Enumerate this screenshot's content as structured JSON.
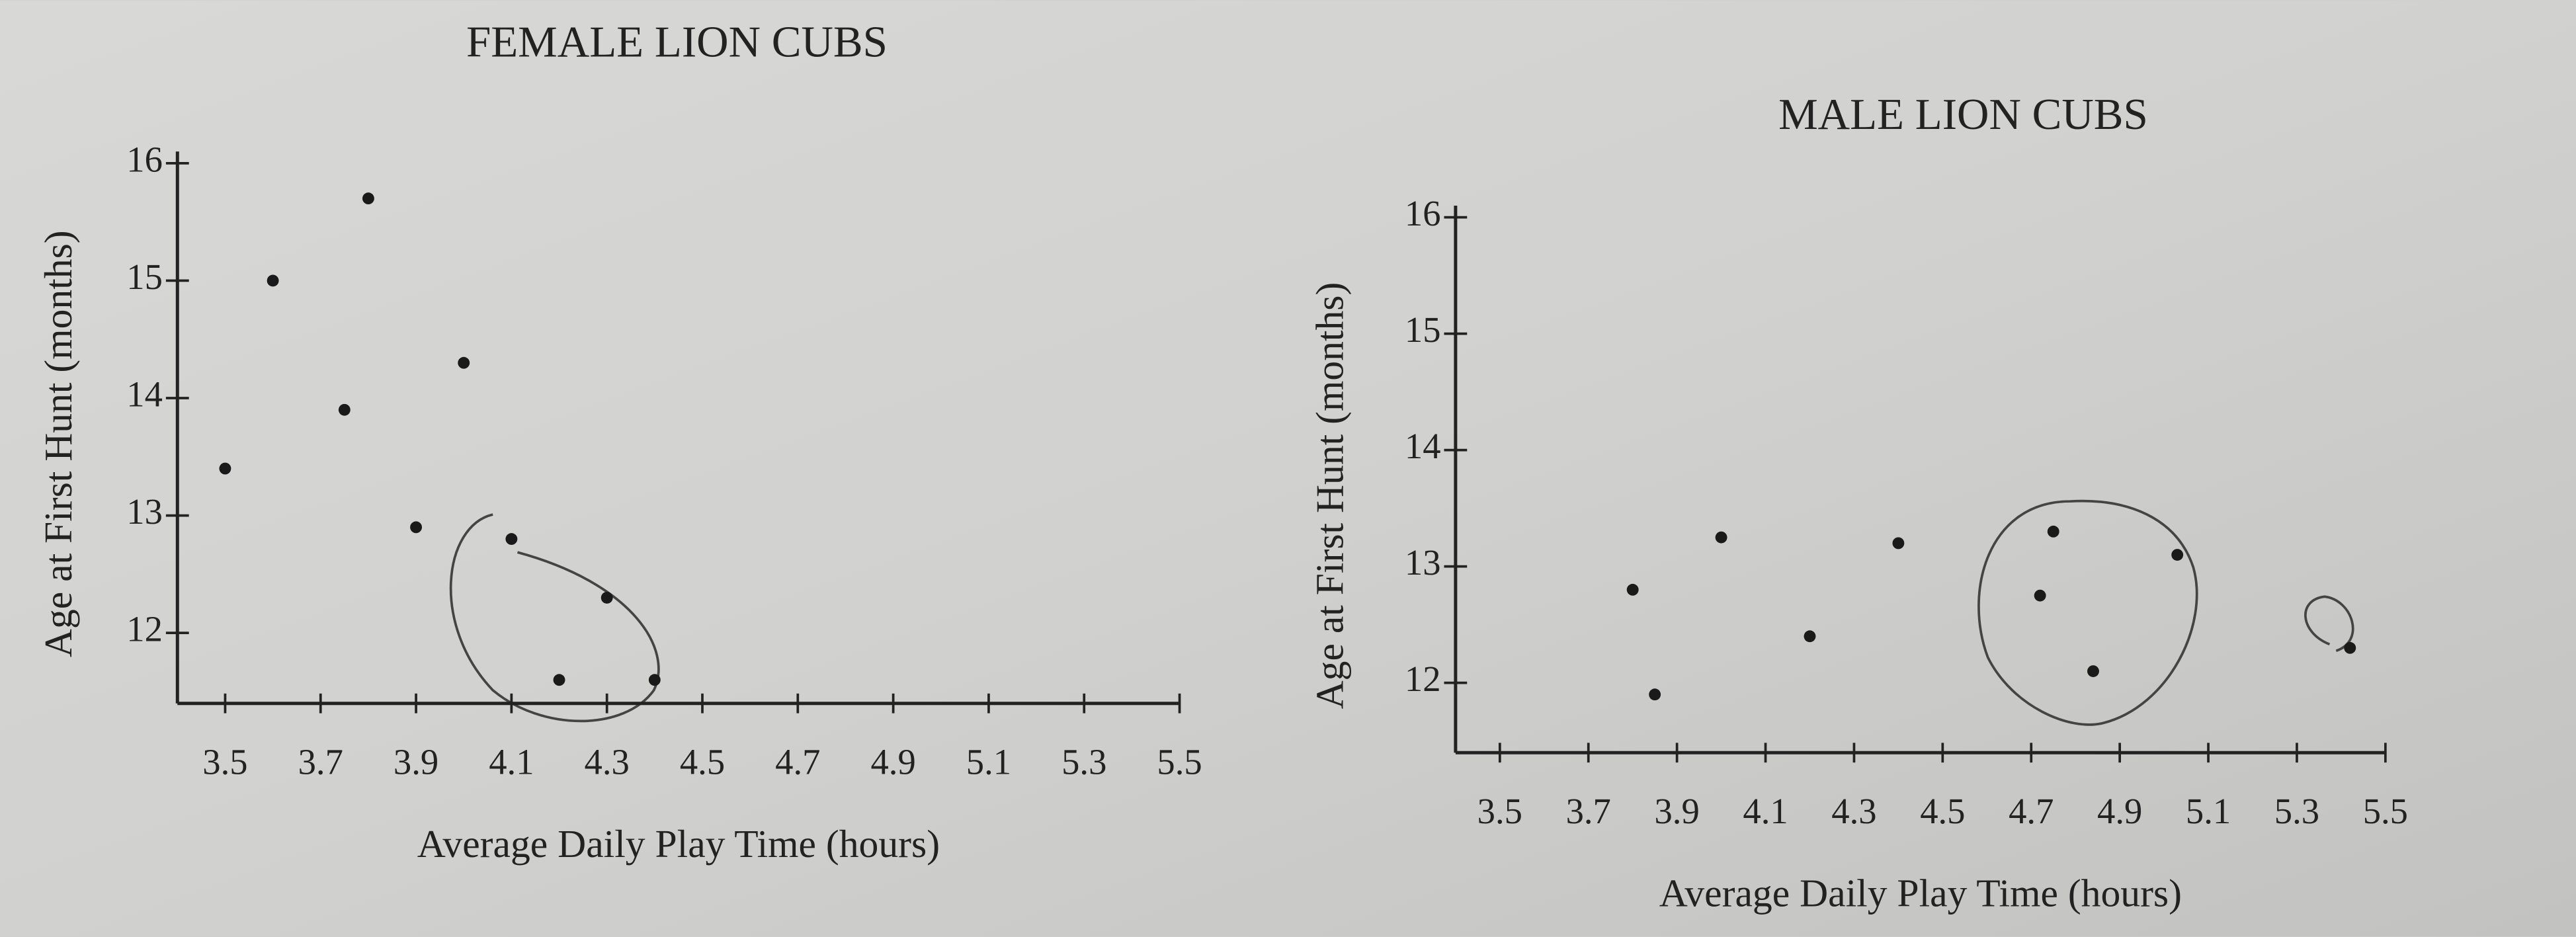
{
  "chart_data": [
    {
      "type": "scatter",
      "title": "FEMALE LION CUBS",
      "x_label": "Average Daily Play Time (hours)",
      "y_label": "Age at First Hunt (months)",
      "series": [
        {
          "color": "#1a1a1a",
          "x": [
            3.5,
            3.6,
            3.8,
            3.75,
            4.0,
            3.9,
            4.1,
            4.3,
            4.2,
            4.4
          ],
          "values": [
            13.4,
            15.0,
            15.7,
            13.9,
            14.3,
            12.9,
            12.8,
            12.3,
            11.6,
            11.6
          ]
        }
      ],
      "xlim": [
        3.4,
        5.5
      ],
      "ylim": [
        11.4,
        16.1
      ],
      "xticks": [
        3.5,
        3.7,
        3.9,
        4.1,
        4.3,
        4.5,
        4.7,
        4.9,
        5.1,
        5.3,
        5.5
      ],
      "yticks": [
        12,
        13,
        14,
        15,
        16
      ]
    },
    {
      "type": "scatter",
      "title": "MALE LION CUBS",
      "x_label": "Average Daily Play Time (hours)",
      "y_label": "Age at First Hunt (months)",
      "series": [
        {
          "color": "#1a1a1a",
          "x": [
            3.8,
            3.85,
            4.0,
            4.2,
            4.4,
            4.75,
            4.72,
            4.84,
            5.03,
            5.42
          ],
          "values": [
            12.8,
            11.9,
            13.25,
            12.4,
            13.2,
            13.3,
            12.75,
            12.1,
            13.1,
            12.3
          ]
        }
      ],
      "xlim": [
        3.4,
        5.5
      ],
      "ylim": [
        11.4,
        16.1
      ],
      "xticks": [
        3.5,
        3.7,
        3.9,
        4.1,
        4.3,
        4.5,
        4.7,
        4.9,
        5.1,
        5.3,
        5.5
      ],
      "yticks": [
        12,
        13,
        14,
        15,
        16
      ]
    }
  ]
}
